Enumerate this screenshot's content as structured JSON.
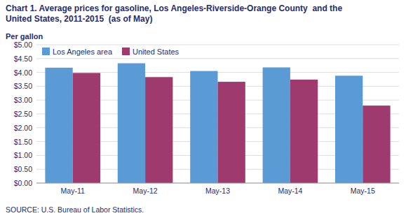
{
  "chart_data": {
    "type": "bar",
    "title": "Chart 1. Average prices for gasoline, Los Angeles-Riverside-Orange County  and the",
    "subtitle": "United States, 2011-2015  (as of May)",
    "ylabel": "Per gallon",
    "source": "SOURCE: U.S. Bureau of Labor Statistics.",
    "categories": [
      "May-11",
      "May-12",
      "May-13",
      "May-14",
      "May-15"
    ],
    "series": [
      {
        "name": "Los Angeles area",
        "color": "#5B9BD5",
        "values": [
          4.17,
          4.33,
          4.05,
          4.18,
          3.88
        ]
      },
      {
        "name": "United States",
        "color": "#9E3A6E",
        "values": [
          3.98,
          3.83,
          3.66,
          3.74,
          2.8
        ]
      }
    ],
    "ylim": [
      0,
      5.0
    ],
    "yticks": [
      {
        "value": 0.0,
        "label": "$0.00"
      },
      {
        "value": 0.5,
        "label": "$0.50"
      },
      {
        "value": 1.0,
        "label": "$1.00"
      },
      {
        "value": 1.5,
        "label": "$1.50"
      },
      {
        "value": 2.0,
        "label": "$2.00"
      },
      {
        "value": 2.5,
        "label": "$2.50"
      },
      {
        "value": 3.0,
        "label": "$3.00"
      },
      {
        "value": 3.5,
        "label": "$3.50"
      },
      {
        "value": 4.0,
        "label": "$4.00"
      },
      {
        "value": 4.5,
        "label": "$4.50"
      },
      {
        "value": 5.0,
        "label": "$5.00"
      }
    ],
    "grid": true,
    "legend": "upper left"
  }
}
